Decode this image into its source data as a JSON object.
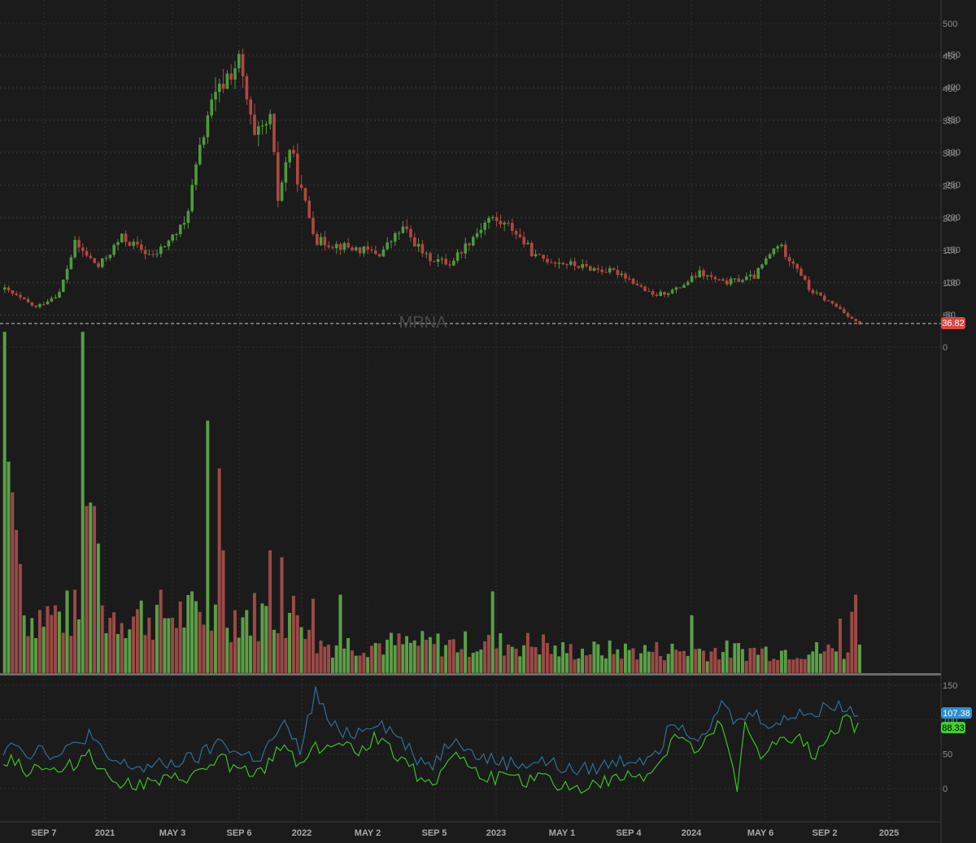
{
  "colors": {
    "background": "#1b1b1b",
    "grid": "#2f2f2f",
    "up": "#4e9a3e",
    "down": "#b2473f",
    "vol_up": "#5b9f47",
    "vol_down": "#9b4a46",
    "line1": "#2f6f9c",
    "line2": "#3fbf2a",
    "last_price_badge": "#d9473f",
    "line1_badge": "#2b8fd0",
    "line2_badge": "#3fd030"
  },
  "chart_data": [
    {
      "type": "candlestick",
      "symbol": "MRNA",
      "price_axis_ticks": [
        "500",
        "450",
        "400",
        "350",
        "300",
        "250",
        "200",
        "150",
        "100",
        "50"
      ],
      "ylim": [
        40,
        505
      ],
      "last_price_label": "36.82",
      "last_price": 36.82,
      "grid": true,
      "x_axis_labels": [
        "SEP 7",
        "2021",
        "MAY 3",
        "SEP 6",
        "2022",
        "MAY 2",
        "SEP 5",
        "2023",
        "MAY 1",
        "SEP 4",
        "2024",
        "MAY 6",
        "SEP 2",
        "2025"
      ],
      "anchor_closes": [
        {
          "week": 0,
          "close": 90
        },
        {
          "week": 8,
          "close": 62
        },
        {
          "week": 14,
          "close": 85
        },
        {
          "week": 18,
          "close": 160
        },
        {
          "week": 24,
          "close": 125
        },
        {
          "week": 30,
          "close": 170
        },
        {
          "week": 38,
          "close": 140
        },
        {
          "week": 46,
          "close": 190
        },
        {
          "week": 52,
          "close": 360
        },
        {
          "week": 57,
          "close": 420
        },
        {
          "week": 60,
          "close": 440
        },
        {
          "week": 64,
          "close": 320
        },
        {
          "week": 68,
          "close": 350
        },
        {
          "week": 70,
          "close": 230
        },
        {
          "week": 73,
          "close": 310
        },
        {
          "week": 76,
          "close": 240
        },
        {
          "week": 80,
          "close": 165
        },
        {
          "week": 88,
          "close": 155
        },
        {
          "week": 96,
          "close": 145
        },
        {
          "week": 102,
          "close": 185
        },
        {
          "week": 108,
          "close": 140
        },
        {
          "week": 114,
          "close": 130
        },
        {
          "week": 124,
          "close": 200
        },
        {
          "week": 130,
          "close": 185
        },
        {
          "week": 136,
          "close": 140
        },
        {
          "week": 148,
          "close": 125
        },
        {
          "week": 158,
          "close": 115
        },
        {
          "week": 166,
          "close": 80
        },
        {
          "week": 172,
          "close": 90
        },
        {
          "week": 178,
          "close": 115
        },
        {
          "week": 184,
          "close": 100
        },
        {
          "week": 192,
          "close": 110
        },
        {
          "week": 198,
          "close": 160
        },
        {
          "week": 203,
          "close": 125
        },
        {
          "week": 206,
          "close": 90
        },
        {
          "week": 214,
          "close": 60
        },
        {
          "week": 218,
          "close": 40
        },
        {
          "week": 219,
          "close": 36.82
        }
      ]
    },
    {
      "type": "bar",
      "name": "volume",
      "axis_ticks": [
        "0",
        "-50",
        "-100",
        "-150",
        "-200",
        "-250",
        "-300",
        "-350",
        "-400",
        "-450"
      ],
      "ylim": [
        0,
        1
      ],
      "count": 220,
      "value_note": "relative bar heights, 1.0 = panel top",
      "spikes": [
        {
          "week": 0,
          "value": 1.0,
          "up": true
        },
        {
          "week": 1,
          "value": 0.62,
          "up": true
        },
        {
          "week": 2,
          "value": 0.53,
          "up": false
        },
        {
          "week": 3,
          "value": 0.42,
          "up": false
        },
        {
          "week": 4,
          "value": 0.32,
          "up": false
        },
        {
          "week": 20,
          "value": 1.0,
          "up": true
        },
        {
          "week": 21,
          "value": 0.49,
          "up": false
        },
        {
          "week": 22,
          "value": 0.5,
          "up": true
        },
        {
          "week": 23,
          "value": 0.49,
          "up": false
        },
        {
          "week": 24,
          "value": 0.38,
          "up": true
        },
        {
          "week": 52,
          "value": 0.74,
          "up": true
        },
        {
          "week": 55,
          "value": 0.6,
          "up": false
        },
        {
          "week": 56,
          "value": 0.36,
          "up": false
        },
        {
          "week": 68,
          "value": 0.36,
          "up": false
        },
        {
          "week": 71,
          "value": 0.34,
          "up": false
        },
        {
          "week": 86,
          "value": 0.23,
          "up": true
        },
        {
          "week": 125,
          "value": 0.24,
          "up": true
        },
        {
          "week": 176,
          "value": 0.17,
          "up": true
        },
        {
          "week": 214,
          "value": 0.16,
          "up": false
        },
        {
          "week": 217,
          "value": 0.18,
          "up": false
        },
        {
          "week": 218,
          "value": 0.23,
          "up": false
        }
      ]
    },
    {
      "type": "line",
      "name": "indicator",
      "axis_ticks": [
        "150",
        "100",
        "50",
        "0"
      ],
      "ylim": [
        -40,
        170
      ],
      "grid": true,
      "series": [
        {
          "label_value": "107.38",
          "color": "#2f6f9c",
          "anchors": [
            [
              0,
              55
            ],
            [
              2,
              75
            ],
            [
              6,
              50
            ],
            [
              10,
              60
            ],
            [
              14,
              45
            ],
            [
              20,
              70
            ],
            [
              22,
              80
            ],
            [
              26,
              45
            ],
            [
              30,
              35
            ],
            [
              36,
              30
            ],
            [
              42,
              35
            ],
            [
              50,
              45
            ],
            [
              56,
              70
            ],
            [
              60,
              50
            ],
            [
              66,
              45
            ],
            [
              70,
              80
            ],
            [
              72,
              90
            ],
            [
              76,
              55
            ],
            [
              80,
              140
            ],
            [
              84,
              90
            ],
            [
              90,
              80
            ],
            [
              96,
              100
            ],
            [
              102,
              70
            ],
            [
              106,
              45
            ],
            [
              110,
              35
            ],
            [
              116,
              80
            ],
            [
              120,
              50
            ],
            [
              126,
              40
            ],
            [
              132,
              35
            ],
            [
              138,
              40
            ],
            [
              146,
              25
            ],
            [
              152,
              30
            ],
            [
              158,
              40
            ],
            [
              164,
              45
            ],
            [
              168,
              60
            ],
            [
              172,
              100
            ],
            [
              178,
              75
            ],
            [
              184,
              120
            ],
            [
              188,
              95
            ],
            [
              192,
              110
            ],
            [
              198,
              90
            ],
            [
              204,
              115
            ],
            [
              208,
              105
            ],
            [
              212,
              125
            ],
            [
              216,
              115
            ],
            [
              220,
              110
            ]
          ]
        },
        {
          "label_value": "88.33",
          "color": "#3fbf2a",
          "anchors": [
            [
              0,
              30
            ],
            [
              2,
              50
            ],
            [
              6,
              25
            ],
            [
              10,
              35
            ],
            [
              14,
              20
            ],
            [
              20,
              45
            ],
            [
              22,
              55
            ],
            [
              26,
              20
            ],
            [
              30,
              10
            ],
            [
              36,
              5
            ],
            [
              42,
              10
            ],
            [
              50,
              20
            ],
            [
              56,
              45
            ],
            [
              60,
              25
            ],
            [
              66,
              20
            ],
            [
              70,
              55
            ],
            [
              72,
              65
            ],
            [
              76,
              35
            ],
            [
              80,
              60
            ],
            [
              84,
              65
            ],
            [
              90,
              55
            ],
            [
              96,
              75
            ],
            [
              102,
              45
            ],
            [
              106,
              20
            ],
            [
              110,
              10
            ],
            [
              116,
              55
            ],
            [
              120,
              25
            ],
            [
              126,
              15
            ],
            [
              132,
              10
            ],
            [
              138,
              15
            ],
            [
              146,
              0
            ],
            [
              152,
              5
            ],
            [
              158,
              15
            ],
            [
              164,
              20
            ],
            [
              168,
              35
            ],
            [
              172,
              80
            ],
            [
              178,
              50
            ],
            [
              184,
              95
            ],
            [
              188,
              -5
            ],
            [
              190,
              90
            ],
            [
              194,
              50
            ],
            [
              198,
              65
            ],
            [
              204,
              70
            ],
            [
              208,
              50
            ],
            [
              212,
              85
            ],
            [
              216,
              100
            ],
            [
              220,
              80
            ]
          ]
        }
      ]
    }
  ]
}
